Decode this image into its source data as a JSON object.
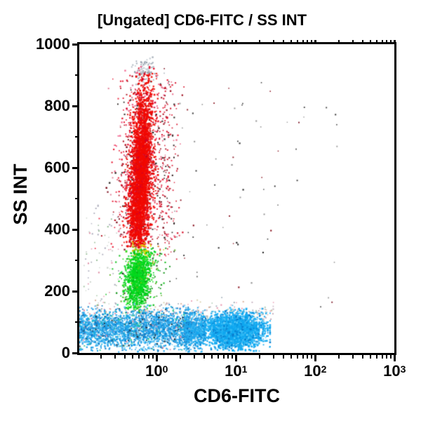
{
  "figure": {
    "title": "[Ungated] CD6-FITC / SS INT",
    "x_axis": {
      "label": "CD6-FITC",
      "scale": "log10",
      "ticks": [
        {
          "exp": 0,
          "base": "10",
          "sup": "0"
        },
        {
          "exp": 1,
          "base": "10",
          "sup": "1"
        },
        {
          "exp": 2,
          "base": "10",
          "sup": "2"
        },
        {
          "exp": 3,
          "base": "10",
          "sup": "3"
        }
      ],
      "minor_decades": [
        -1,
        0,
        1,
        2
      ],
      "minor_mantissas": [
        2,
        3,
        4,
        5,
        6,
        7,
        8,
        9
      ]
    },
    "y_axis": {
      "label": "SS INT",
      "scale": "linear",
      "ticks": [
        {
          "value": 1000,
          "label": "1000"
        },
        {
          "value": 800,
          "label": "800"
        },
        {
          "value": 600,
          "label": "600"
        },
        {
          "value": 400,
          "label": "400"
        },
        {
          "value": 200,
          "label": "200"
        },
        {
          "value": 0,
          "label": "0"
        }
      ],
      "minor_ticks": [
        900,
        700,
        500,
        300,
        100
      ]
    }
  },
  "chart_data": {
    "type": "scatter",
    "title": "[Ungated] CD6-FITC / SS INT",
    "xlabel": "CD6-FITC",
    "ylabel": "SS INT",
    "x_scale": "log10",
    "x_range": [
      0.107,
      1000
    ],
    "y_scale": "linear",
    "y_range": [
      0,
      1000
    ],
    "x_ticks_major": [
      1,
      10,
      100,
      1000
    ],
    "y_ticks_major": [
      0,
      200,
      400,
      600,
      800,
      1000
    ],
    "populations": [
      {
        "name": "debris-top-smudge",
        "count": 90,
        "x": {
          "dist": "normal_log10",
          "mu": -0.135,
          "sigma": 0.08
        },
        "y": {
          "dist": "normal",
          "mean": 916,
          "sd": 20,
          "min": 868,
          "max": 958
        },
        "dot": 2.0,
        "colors": [
          [
            "#A9B2BC",
            45
          ],
          [
            "#C2CAD2",
            30
          ],
          [
            "#8E9AA6",
            25
          ]
        ]
      },
      {
        "name": "granulocytes-halo",
        "count": 950,
        "x": {
          "dist": "normal_log10",
          "mu": -0.245,
          "sigma": 0.16,
          "tilt_per_y": 0.00019,
          "tilt_ref": 350
        },
        "y": {
          "dist": "normal",
          "mean": 570,
          "sd": 165,
          "min": 332,
          "max": 928
        },
        "dot": 2.0,
        "colors": [
          [
            "#E8102C",
            40
          ],
          [
            "#B01020",
            18
          ],
          [
            "#7A0A18",
            10
          ],
          [
            "#28211E",
            10
          ],
          [
            "#F05A86",
            12
          ],
          [
            "#E08098",
            10
          ]
        ]
      },
      {
        "name": "granulocytes-right-wisp",
        "count": 200,
        "x": {
          "dist": "normal_log10",
          "mu": 0.13,
          "sigma": 0.09
        },
        "y": {
          "dist": "uniform",
          "min": 300,
          "max": 880
        },
        "dot": 1.9,
        "colors": [
          [
            "#D81830",
            50
          ],
          [
            "#A01020",
            20
          ],
          [
            "#E86080",
            15
          ],
          [
            "#302020",
            15
          ]
        ]
      },
      {
        "name": "granulocytes-core",
        "count": 3300,
        "x": {
          "dist": "normal_log10",
          "mu": -0.245,
          "sigma": 0.066,
          "tilt_per_y": 0.00019,
          "tilt_ref": 350
        },
        "y": {
          "dist": "normal",
          "mean": 560,
          "sd": 150,
          "min": 340,
          "max": 905
        },
        "dot": 2.2,
        "colors": [
          [
            "#F20800",
            80
          ],
          [
            "#E01010",
            12
          ],
          [
            "#D0002A",
            8
          ]
        ]
      },
      {
        "name": "monocytes-halo",
        "count": 240,
        "x": {
          "dist": "normal_log10",
          "mu": -0.26,
          "sigma": 0.15,
          "tilt_per_y": 0.0003,
          "tilt_ref": 150
        },
        "y": {
          "dist": "normal",
          "mean": 245,
          "sd": 68,
          "min": 125,
          "max": 345
        },
        "dot": 2.0,
        "colors": [
          [
            "#18C020",
            50
          ],
          [
            "#0A9010",
            20
          ],
          [
            "#70B83C",
            15
          ],
          [
            "#203020",
            7
          ],
          [
            "#C8C020",
            8
          ]
        ]
      },
      {
        "name": "monocytes-core",
        "count": 1050,
        "x": {
          "dist": "normal_log10",
          "mu": -0.26,
          "sigma": 0.075,
          "tilt_per_y": 0.0003,
          "tilt_ref": 150
        },
        "y": {
          "dist": "normal",
          "mean": 248,
          "sd": 55,
          "min": 140,
          "max": 338
        },
        "dot": 2.2,
        "colors": [
          [
            "#00D81E",
            72
          ],
          [
            "#20E020",
            12
          ],
          [
            "#08B014",
            10
          ],
          [
            "#60C818",
            6
          ]
        ]
      },
      {
        "name": "red-green-boundary-yellow",
        "count": 40,
        "x": {
          "dist": "normal_log10",
          "mu": -0.21,
          "sigma": 0.09
        },
        "y": {
          "dist": "normal",
          "mean": 338,
          "sd": 13,
          "min": 312,
          "max": 362
        },
        "dot": 2.0,
        "colors": [
          [
            "#E3D300",
            55
          ],
          [
            "#C9B400",
            30
          ],
          [
            "#F0E060",
            15
          ]
        ]
      },
      {
        "name": "band-top-noise",
        "count": 270,
        "x": {
          "dist": "uniform_log10",
          "min": -0.9,
          "max": 1.52
        },
        "y": {
          "dist": "normal",
          "mean": 128,
          "sd": 22,
          "min": 100,
          "max": 185
        },
        "dot": 1.8,
        "colors": [
          [
            "#D8B09A",
            22
          ],
          [
            "#C0A8B8",
            18
          ],
          [
            "#E898B0",
            14
          ],
          [
            "#9AA8B4",
            16
          ],
          [
            "#58B8D8",
            12
          ],
          [
            "#A8C8B0",
            8
          ],
          [
            "#D0C8A0",
            10
          ]
        ]
      },
      {
        "name": "left-sparse-noise",
        "count": 70,
        "x": {
          "dist": "uniform_log10",
          "min": -0.92,
          "max": -0.45
        },
        "y": {
          "dist": "uniform",
          "min": 130,
          "max": 480
        },
        "dot": 1.8,
        "colors": [
          [
            "#C8D0C8",
            30
          ],
          [
            "#90B890",
            20
          ],
          [
            "#E090A8",
            20
          ],
          [
            "#A8A8B8",
            30
          ]
        ]
      },
      {
        "name": "debris-mid",
        "count": 55,
        "x": {
          "dist": "uniform_log10",
          "min": 0.2,
          "max": 1.55
        },
        "y": {
          "dist": "uniform",
          "min": 160,
          "max": 880
        },
        "dot": 1.8,
        "colors": [
          [
            "#2A2A2A",
            40
          ],
          [
            "#8A1420",
            30
          ],
          [
            "#888888",
            30
          ]
        ]
      },
      {
        "name": "debris-far",
        "count": 14,
        "x": {
          "dist": "uniform_log10",
          "min": 1.55,
          "max": 2.3
        },
        "y": {
          "dist": "uniform",
          "min": 120,
          "max": 820
        },
        "dot": 1.8,
        "colors": [
          [
            "#383838",
            50
          ],
          [
            "#909090",
            30
          ],
          [
            "#7A1020",
            20
          ]
        ]
      },
      {
        "name": "lymphocytes-spread",
        "count": 2500,
        "x": {
          "dist": "uniform_log10",
          "min": -0.975,
          "max": 0.42
        },
        "y": {
          "dist": "normal",
          "mean": 76,
          "sd": 31,
          "min": 3,
          "max": 158
        },
        "dot": 2.1,
        "colors": [
          [
            "#1C9FE8",
            50
          ],
          [
            "#46BCF2",
            14
          ],
          [
            "#0E79C4",
            14
          ],
          [
            "#82D2F6",
            6
          ],
          [
            "#243C50",
            5
          ],
          [
            "#15B4D8",
            5
          ],
          [
            "#E08CAC",
            3
          ],
          [
            "#30C896",
            3
          ]
        ]
      },
      {
        "name": "lymphocytes-bridge",
        "count": 700,
        "x": {
          "dist": "uniform_log10",
          "min": 0.35,
          "max": 0.62
        },
        "y": {
          "dist": "normal",
          "mean": 74,
          "sd": 29,
          "min": 3,
          "max": 150
        },
        "dot": 2.1,
        "colors": [
          [
            "#1FA6EC",
            60
          ],
          [
            "#3FBCF2",
            20
          ],
          [
            "#0E79C4",
            20
          ]
        ]
      },
      {
        "name": "lymphocytes-dense",
        "count": 2900,
        "x": {
          "dist": "normal_log10",
          "mu": 0.98,
          "sigma": 0.17,
          "min": 0.4,
          "max": 1.43
        },
        "y": {
          "dist": "normal",
          "mean": 72,
          "sd": 26,
          "min": 3,
          "max": 148
        },
        "dot": 2.3,
        "colors": [
          [
            "#10A8F0",
            62
          ],
          [
            "#2EB8F4",
            20
          ],
          [
            "#0880D0",
            12
          ],
          [
            "#60CCF8",
            6
          ]
        ]
      }
    ]
  }
}
